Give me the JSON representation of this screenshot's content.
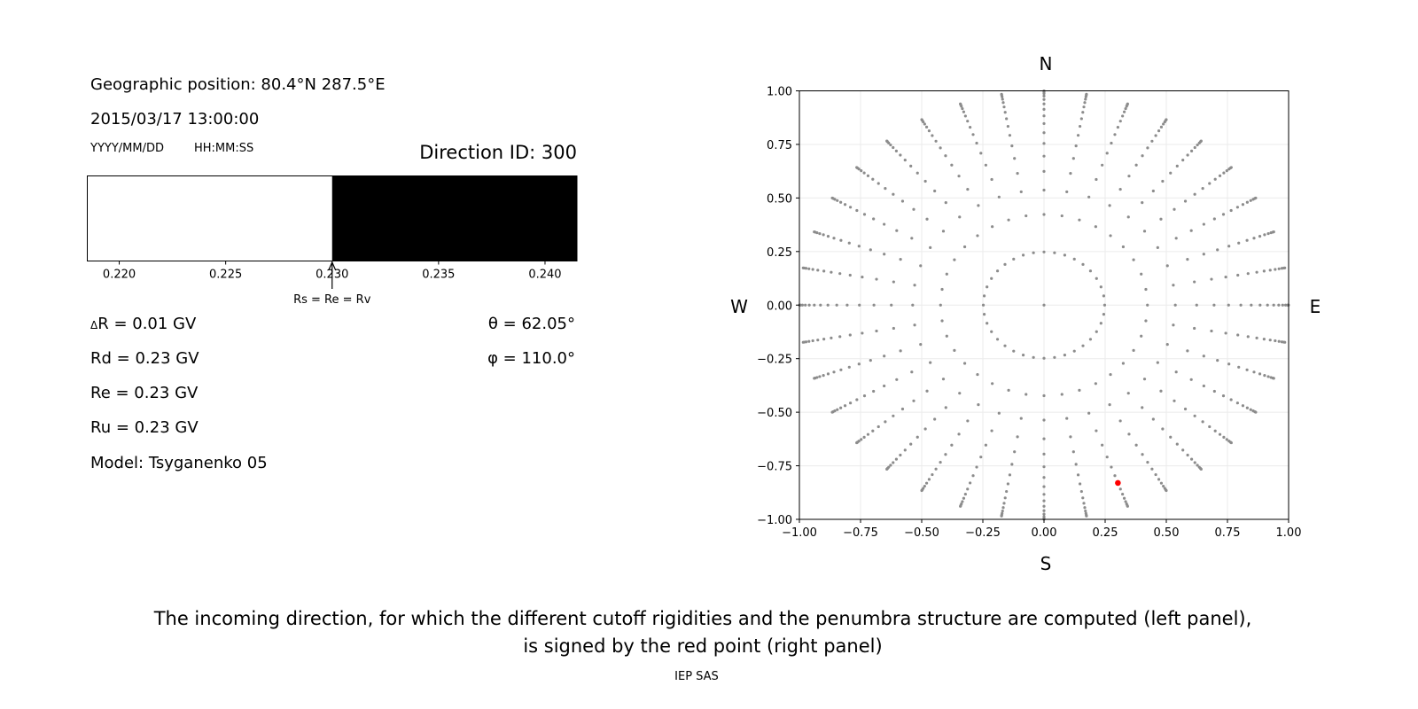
{
  "left_panel": {
    "geo_position": "Geographic position: 80.4°N 287.5°E",
    "datetime": "2015/03/17 13:00:00",
    "date_format_label": "YYYY/MM/DD",
    "time_format_label": "HH:MM:SS",
    "direction_id": "Direction ID: 300",
    "delta_r_symbol": "Δ",
    "delta_r": "R = 0.01 GV",
    "rd": "Rd = 0.23 GV",
    "re": "Re = 0.23 GV",
    "ru": "Ru = 0.23 GV",
    "model": "Model: Tsyganenko 05",
    "theta": "θ = 62.05°",
    "phi": "φ = 110.0°",
    "arrow_label": "Rs = Re = Rv"
  },
  "compass": {
    "north": "N",
    "south": "S",
    "west": "W",
    "east": "E"
  },
  "caption": {
    "line1": "The incoming direction, for which the different cutoff rigidities and the penumbra structure are computed (left panel),",
    "line2": "is signed by the red point (right panel)",
    "footer": "IEP SAS"
  },
  "chart_data": [
    {
      "type": "bar",
      "xlim": [
        0.2185,
        0.2415
      ],
      "xticks": [
        0.22,
        0.225,
        0.23,
        0.235,
        0.24
      ],
      "xtick_labels": [
        "0.220",
        "0.225",
        "0.230",
        "0.235",
        "0.240"
      ],
      "segments": [
        {
          "from": 0.2185,
          "to": 0.23,
          "color": "#ffffff"
        },
        {
          "from": 0.23,
          "to": 0.2415,
          "color": "#000000"
        }
      ],
      "annotation": {
        "x": 0.23,
        "text_ref": "left_panel.arrow_label"
      }
    },
    {
      "type": "scatter",
      "xlim": [
        -1,
        1
      ],
      "ylim": [
        -1,
        1
      ],
      "grid": true,
      "xticks": [
        -1.0,
        -0.75,
        -0.5,
        -0.25,
        0.0,
        0.25,
        0.5,
        0.75,
        1.0
      ],
      "xtick_labels": [
        "−1.00",
        "−0.75",
        "−0.50",
        "−0.25",
        "0.00",
        "0.25",
        "0.50",
        "0.75",
        "1.00"
      ],
      "yticks": [
        1.0,
        0.75,
        0.5,
        0.25,
        0.0,
        -0.25,
        -0.5,
        -0.75,
        -1.0
      ],
      "ytick_labels": [
        "1.00",
        "0.75",
        "0.50",
        "0.25",
        "0.00",
        "−0.25",
        "−0.50",
        "−0.75",
        "−1.00"
      ],
      "direction_grid": {
        "center_point": true,
        "zenith_deg": [
          14.36,
          25.02,
          32.47,
          38.62,
          44.05,
          48.99,
          53.58,
          57.91,
          62.05,
          66.03,
          69.89,
          73.67,
          77.36,
          81.01,
          84.62,
          88.21
        ],
        "azimuth_deg": [
          0,
          10,
          20,
          30,
          40,
          50,
          60,
          70,
          80,
          90,
          100,
          110,
          120,
          130,
          140,
          150,
          160,
          170,
          180,
          190,
          200,
          210,
          220,
          230,
          240,
          250,
          260,
          270,
          280,
          290,
          300,
          310,
          320,
          330,
          340,
          350
        ]
      },
      "highlight": {
        "zenith_deg": 62.05,
        "azimuth_deg": 110.0
      },
      "point_color": "#8c8c8c",
      "highlight_color": "#ff0000"
    }
  ]
}
